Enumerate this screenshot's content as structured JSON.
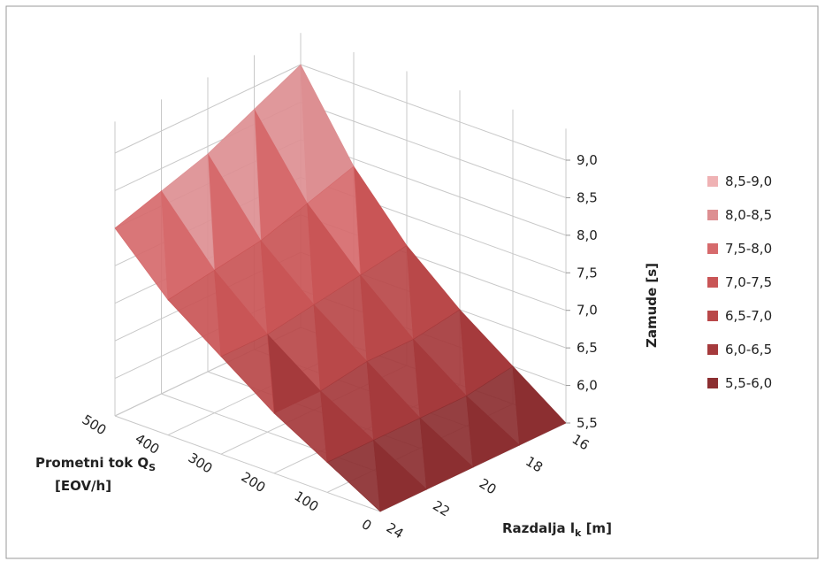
{
  "chart_data": {
    "type": "surface3d",
    "x_label": [
      "Razdalja l",
      "k",
      " [m]"
    ],
    "y_label": [
      "Prometni tok Q",
      "S",
      "[EOV/h]"
    ],
    "z_label": "Zamude [s]",
    "x": [
      24,
      22,
      20,
      18,
      16
    ],
    "xlim": [
      24,
      16
    ],
    "y": [
      0,
      100,
      200,
      300,
      400,
      500
    ],
    "ylim": [
      0,
      500
    ],
    "values": [
      [
        5.5,
        5.5,
        5.5,
        5.5,
        5.5
      ],
      [
        5.9,
        5.9,
        5.9,
        5.9,
        6.0
      ],
      [
        6.3,
        6.3,
        6.4,
        6.4,
        6.5
      ],
      [
        6.8,
        6.8,
        6.9,
        7.0,
        7.1
      ],
      [
        7.3,
        7.4,
        7.5,
        7.7,
        7.9
      ],
      [
        8.0,
        8.2,
        8.4,
        8.7,
        9.0
      ]
    ],
    "zlim": [
      5.5,
      9.0
    ],
    "zticks": [
      {
        "value": 5.5,
        "label": "5,5"
      },
      {
        "value": 6.0,
        "label": "6,0"
      },
      {
        "value": 6.5,
        "label": "6,5"
      },
      {
        "value": 7.0,
        "label": "7,0"
      },
      {
        "value": 7.5,
        "label": "7,5"
      },
      {
        "value": 8.0,
        "label": "8,0"
      },
      {
        "value": 8.5,
        "label": "8,5"
      },
      {
        "value": 9.0,
        "label": "9,0"
      }
    ],
    "bands": [
      {
        "name": "8,5-9,0",
        "range": [
          8.5,
          9.0
        ],
        "color": "#efb2b4"
      },
      {
        "name": "8,0-8,5",
        "range": [
          8.0,
          8.5
        ],
        "color": "#dd8f92"
      },
      {
        "name": "7,5-8,0",
        "range": [
          7.5,
          8.0
        ],
        "color": "#d66a6c"
      },
      {
        "name": "7,0-7,5",
        "range": [
          7.0,
          7.5
        ],
        "color": "#c95556"
      },
      {
        "name": "6,5-7,0",
        "range": [
          6.5,
          7.0
        ],
        "color": "#b94849"
      },
      {
        "name": "6,0-6,5",
        "range": [
          6.0,
          6.5
        ],
        "color": "#a53a3c"
      },
      {
        "name": "5,5-6,0",
        "range": [
          5.5,
          6.0
        ],
        "color": "#8c2f31"
      }
    ],
    "grid": true
  }
}
